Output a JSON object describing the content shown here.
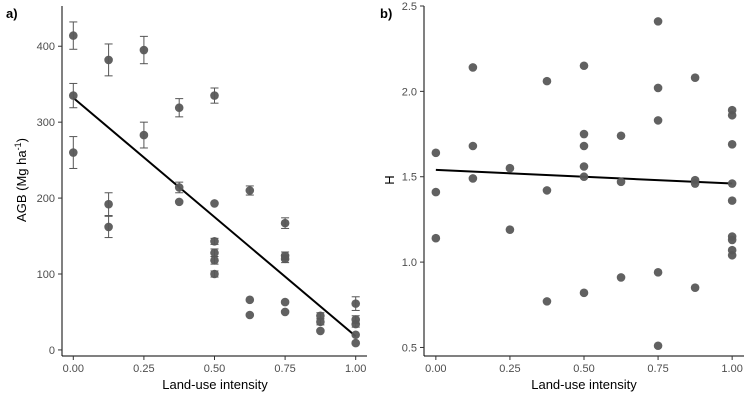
{
  "colors": {
    "point": "#595959",
    "error_bar": "#555555",
    "fit_line": "#000000"
  },
  "chart_data": [
    {
      "panel": "a)",
      "type": "scatter",
      "title": "",
      "xlabel": "Land-use intensity",
      "ylabel": "AGB (Mg ha",
      "ylabel_sup": "-1",
      "ylabel_close": ")",
      "xlim": [
        -0.04,
        1.04
      ],
      "ylim": [
        -8,
        453
      ],
      "xticks": [
        0.0,
        0.25,
        0.5,
        0.75,
        1.0
      ],
      "xtick_labels": [
        "0.00",
        "0.25",
        "0.50",
        "0.75",
        "1.00"
      ],
      "yticks": [
        0,
        100,
        200,
        300,
        400
      ],
      "ytick_labels": [
        "0",
        "100",
        "200",
        "300",
        "400"
      ],
      "grid": false,
      "legend": "none",
      "points": [
        {
          "x": 0.0,
          "y": 414,
          "err": 18
        },
        {
          "x": 0.0,
          "y": 335,
          "err": 16
        },
        {
          "x": 0.0,
          "y": 260,
          "err": 21
        },
        {
          "x": 0.125,
          "y": 382,
          "err": 21
        },
        {
          "x": 0.125,
          "y": 192,
          "err": 15
        },
        {
          "x": 0.125,
          "y": 162,
          "err": 14
        },
        {
          "x": 0.25,
          "y": 395,
          "err": 18
        },
        {
          "x": 0.25,
          "y": 283,
          "err": 17
        },
        {
          "x": 0.375,
          "y": 319,
          "err": 12
        },
        {
          "x": 0.375,
          "y": 214,
          "err": 7
        },
        {
          "x": 0.375,
          "y": 195,
          "err": 0
        },
        {
          "x": 0.5,
          "y": 335,
          "err": 10
        },
        {
          "x": 0.5,
          "y": 193,
          "err": 0
        },
        {
          "x": 0.5,
          "y": 143,
          "err": 4
        },
        {
          "x": 0.5,
          "y": 128,
          "err": 5
        },
        {
          "x": 0.5,
          "y": 118,
          "err": 5
        },
        {
          "x": 0.5,
          "y": 100,
          "err": 4
        },
        {
          "x": 0.625,
          "y": 210,
          "err": 6
        },
        {
          "x": 0.625,
          "y": 66,
          "err": 0
        },
        {
          "x": 0.625,
          "y": 46,
          "err": 0
        },
        {
          "x": 0.75,
          "y": 167,
          "err": 7
        },
        {
          "x": 0.75,
          "y": 124,
          "err": 5
        },
        {
          "x": 0.75,
          "y": 120,
          "err": 5
        },
        {
          "x": 0.75,
          "y": 63,
          "err": 0
        },
        {
          "x": 0.75,
          "y": 50,
          "err": 0
        },
        {
          "x": 0.875,
          "y": 45,
          "err": 4
        },
        {
          "x": 0.875,
          "y": 37,
          "err": 4
        },
        {
          "x": 0.875,
          "y": 25,
          "err": 0
        },
        {
          "x": 1.0,
          "y": 61,
          "err": 9
        },
        {
          "x": 1.0,
          "y": 40,
          "err": 5
        },
        {
          "x": 1.0,
          "y": 34,
          "err": 4
        },
        {
          "x": 1.0,
          "y": 20,
          "err": 0
        },
        {
          "x": 1.0,
          "y": 9,
          "err": 0
        }
      ],
      "fit": {
        "x": [
          0.0,
          1.0
        ],
        "y": [
          332,
          18
        ]
      }
    },
    {
      "panel": "b)",
      "type": "scatter",
      "title": "",
      "xlabel": "Land-use intensity",
      "ylabel": "H",
      "xlim": [
        -0.04,
        1.04
      ],
      "ylim": [
        0.45,
        2.5
      ],
      "xticks": [
        0.0,
        0.25,
        0.5,
        0.75,
        1.0
      ],
      "xtick_labels": [
        "0.00",
        "0.25",
        "0.50",
        "0.75",
        "1.00"
      ],
      "yticks": [
        0.5,
        1.0,
        1.5,
        2.0,
        2.5
      ],
      "ytick_labels": [
        "0.5",
        "1.0",
        "1.5",
        "2.0",
        "2.5"
      ],
      "grid": false,
      "legend": "none",
      "points": [
        {
          "x": 0.0,
          "y": 1.64
        },
        {
          "x": 0.0,
          "y": 1.41
        },
        {
          "x": 0.0,
          "y": 1.14
        },
        {
          "x": 0.125,
          "y": 2.14
        },
        {
          "x": 0.125,
          "y": 1.68
        },
        {
          "x": 0.125,
          "y": 1.49
        },
        {
          "x": 0.25,
          "y": 1.55
        },
        {
          "x": 0.25,
          "y": 1.19
        },
        {
          "x": 0.375,
          "y": 2.06
        },
        {
          "x": 0.375,
          "y": 1.42
        },
        {
          "x": 0.375,
          "y": 0.77
        },
        {
          "x": 0.5,
          "y": 2.15
        },
        {
          "x": 0.5,
          "y": 1.75
        },
        {
          "x": 0.5,
          "y": 1.68
        },
        {
          "x": 0.5,
          "y": 1.56
        },
        {
          "x": 0.5,
          "y": 1.5
        },
        {
          "x": 0.5,
          "y": 0.82
        },
        {
          "x": 0.625,
          "y": 1.74
        },
        {
          "x": 0.625,
          "y": 1.47
        },
        {
          "x": 0.625,
          "y": 0.91
        },
        {
          "x": 0.75,
          "y": 2.41
        },
        {
          "x": 0.75,
          "y": 2.02
        },
        {
          "x": 0.75,
          "y": 1.83
        },
        {
          "x": 0.75,
          "y": 0.94
        },
        {
          "x": 0.75,
          "y": 0.51
        },
        {
          "x": 0.875,
          "y": 2.08
        },
        {
          "x": 0.875,
          "y": 1.48
        },
        {
          "x": 0.875,
          "y": 1.46
        },
        {
          "x": 0.875,
          "y": 0.85
        },
        {
          "x": 1.0,
          "y": 1.89
        },
        {
          "x": 1.0,
          "y": 1.86
        },
        {
          "x": 1.0,
          "y": 1.69
        },
        {
          "x": 1.0,
          "y": 1.46
        },
        {
          "x": 1.0,
          "y": 1.36
        },
        {
          "x": 1.0,
          "y": 1.15
        },
        {
          "x": 1.0,
          "y": 1.13
        },
        {
          "x": 1.0,
          "y": 1.07
        },
        {
          "x": 1.0,
          "y": 1.04
        }
      ],
      "fit": {
        "x": [
          0.0,
          1.0
        ],
        "y": [
          1.54,
          1.46
        ]
      }
    }
  ]
}
